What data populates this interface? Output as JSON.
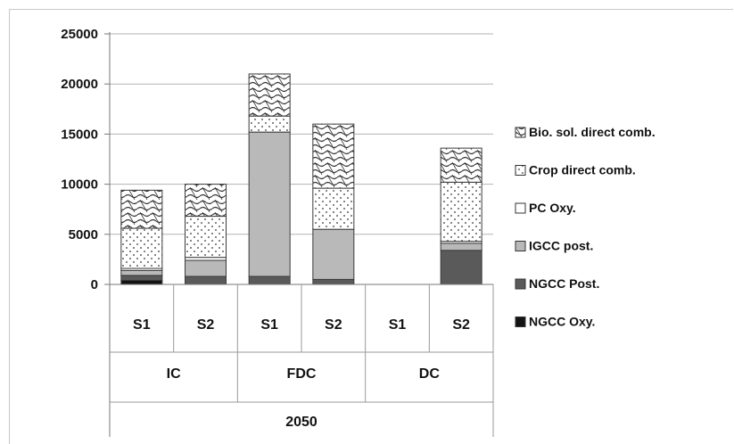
{
  "chart_data": {
    "type": "bar",
    "stacked": true,
    "title": "",
    "xlabel": "",
    "ylabel": "",
    "ylim": [
      0,
      25000
    ],
    "yticks": [
      0,
      5000,
      10000,
      15000,
      20000,
      25000
    ],
    "grid": true,
    "legend_position": "right",
    "x_levels": {
      "scenarios": [
        "S1",
        "S2",
        "S1",
        "S2",
        "S1",
        "S2"
      ],
      "groups": [
        {
          "label": "IC",
          "span": 2
        },
        {
          "label": "FDC",
          "span": 2
        },
        {
          "label": "DC",
          "span": 2
        }
      ],
      "year": "2050"
    },
    "categories": [
      "IC S1",
      "IC S2",
      "FDC S1",
      "FDC S2",
      "DC S1",
      "DC S2"
    ],
    "series": [
      {
        "name": "NGCC Oxy.",
        "pattern": "solid-black",
        "values": [
          400,
          0,
          0,
          0,
          0,
          0
        ]
      },
      {
        "name": "NGCC Post.",
        "pattern": "dark-gray",
        "values": [
          500,
          800,
          800,
          500,
          0,
          3400
        ]
      },
      {
        "name": "IGCC post.",
        "pattern": "light-gray",
        "values": [
          500,
          1600,
          14400,
          5000,
          0,
          700
        ]
      },
      {
        "name": "PC Oxy.",
        "pattern": "white",
        "values": [
          200,
          300,
          0,
          0,
          0,
          200
        ]
      },
      {
        "name": "Crop direct comb.",
        "pattern": "dots",
        "values": [
          4000,
          4100,
          1600,
          4100,
          0,
          5900
        ]
      },
      {
        "name": "Bio. sol. direct comb.",
        "pattern": "waves",
        "values": [
          3800,
          3200,
          4200,
          6400,
          0,
          3400
        ]
      }
    ]
  }
}
